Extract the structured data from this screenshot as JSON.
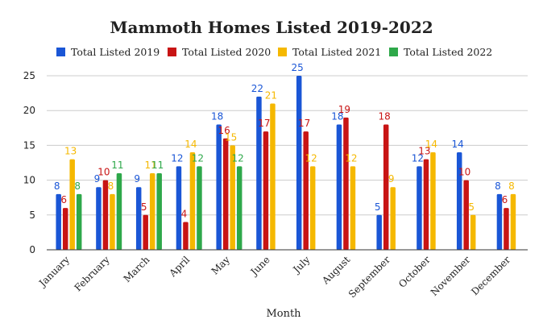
{
  "chart_data": {
    "type": "bar",
    "title": "Mammoth Homes Listed 2019-2022",
    "xlabel": "Month",
    "ylabel": "",
    "ylim": [
      0,
      25
    ],
    "yticks": [
      0,
      5,
      10,
      15,
      20,
      25
    ],
    "grid": true,
    "legend_position": "top",
    "categories": [
      "January",
      "February",
      "March",
      "April",
      "May",
      "June",
      "July",
      "August",
      "September",
      "October",
      "November",
      "December"
    ],
    "series": [
      {
        "name": "Total Listed 2019",
        "color": "#1a56d6",
        "values": [
          8,
          9,
          9,
          12,
          18,
          22,
          25,
          18,
          5,
          12,
          14,
          8
        ]
      },
      {
        "name": "Total Listed 2020",
        "color": "#c81414",
        "values": [
          6,
          10,
          5,
          4,
          16,
          17,
          17,
          19,
          18,
          13,
          10,
          6
        ]
      },
      {
        "name": "Total Listed 2021",
        "color": "#f5b800",
        "values": [
          13,
          8,
          11,
          14,
          15,
          21,
          12,
          12,
          9,
          14,
          5,
          8
        ]
      },
      {
        "name": "Total Listed 2022",
        "color": "#2ea84a",
        "values": [
          8,
          11,
          11,
          12,
          12,
          null,
          null,
          null,
          null,
          null,
          null,
          null
        ]
      }
    ]
  }
}
